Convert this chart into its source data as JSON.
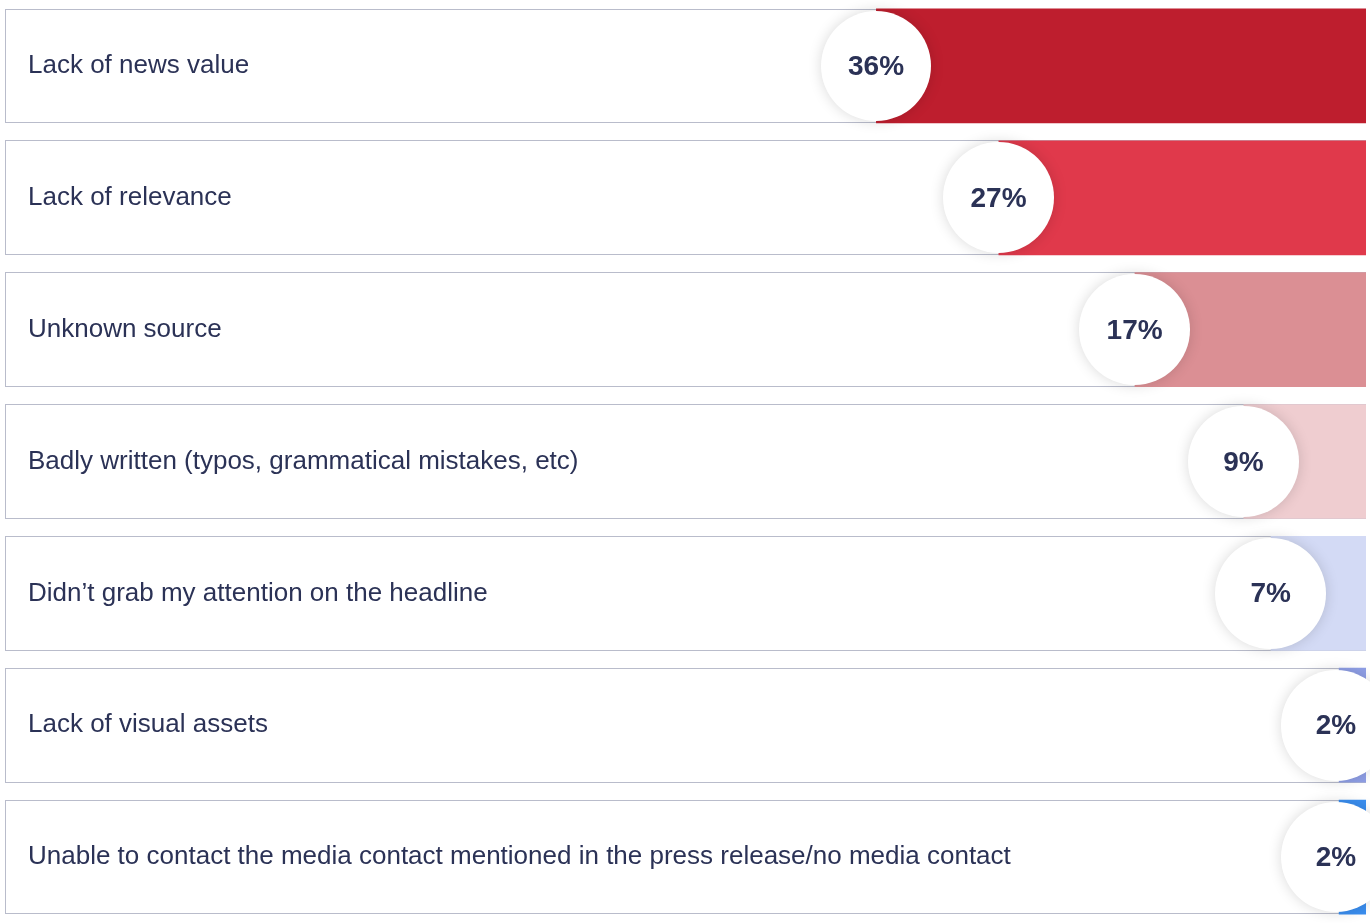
{
  "chart_data": {
    "type": "bar",
    "orientation": "horizontal",
    "categories": [
      "Lack of news value",
      "Lack of relevance",
      "Unknown source",
      "Badly written (typos, grammatical mistakes, etc)",
      "Didn’t grab my attention on the headline",
      "Lack of visual assets",
      "Unable to contact the media contact mentioned in the press release/no media contact"
    ],
    "values": [
      36,
      27,
      17,
      9,
      7,
      2,
      2
    ],
    "value_labels": [
      "36%",
      "27%",
      "17%",
      "9%",
      "7%",
      "2%",
      "2%"
    ],
    "colors": [
      "#be1e2e",
      "#e0394b",
      "#db8f94",
      "#efcdd0",
      "#d3daf5",
      "#8f9fe6",
      "#3a8ef0"
    ],
    "tick_labels": false
  }
}
